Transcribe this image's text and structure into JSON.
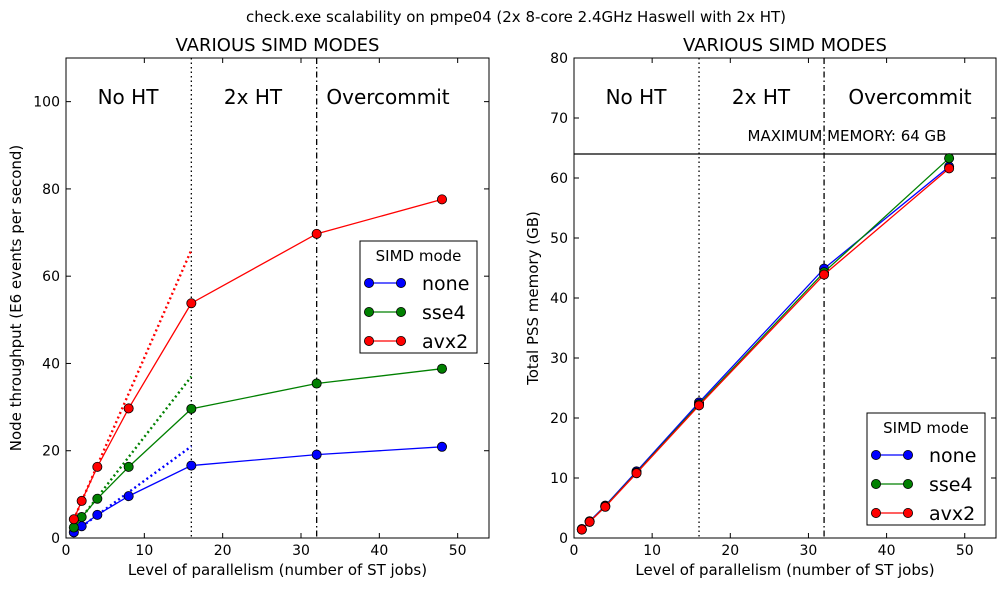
{
  "suptitle": "check.exe scalability on pmpe04 (2x 8-core 2.4GHz Haswell with 2x HT)",
  "colors": {
    "none": "#0000ff",
    "sse4": "#008000",
    "avx2": "#ff0000",
    "axis": "#000000"
  },
  "chart_data": [
    {
      "type": "line",
      "title": "VARIOUS SIMD MODES",
      "xlabel": "Level of parallelism (number of ST jobs)",
      "ylabel": "Node throughput (E6 events per second)",
      "xlim": [
        0,
        54
      ],
      "ylim": [
        0,
        110
      ],
      "xticks": [
        0,
        10,
        20,
        30,
        40,
        50
      ],
      "yticks": [
        0,
        20,
        40,
        60,
        80,
        100
      ],
      "grid": false,
      "regions": [
        "No HT",
        "2x HT",
        "Overcommit"
      ],
      "vlines": [
        {
          "x": 16,
          "style": "dotted"
        },
        {
          "x": 32,
          "style": "dashdot"
        }
      ],
      "legend": {
        "title": "SIMD mode",
        "position": "center-right"
      },
      "series": [
        {
          "name": "none",
          "color_key": "none",
          "x": [
            1,
            2,
            4,
            8,
            16,
            32,
            48
          ],
          "y": [
            1.3,
            2.7,
            5.3,
            9.6,
            16.6,
            19.1,
            20.9
          ],
          "ideal": {
            "x": [
              1,
              16
            ],
            "y": [
              1.3,
              21
            ]
          }
        },
        {
          "name": "sse4",
          "color_key": "sse4",
          "x": [
            1,
            2,
            4,
            8,
            16,
            32,
            48
          ],
          "y": [
            2.4,
            4.8,
            9.0,
            16.3,
            29.6,
            35.4,
            38.8
          ],
          "ideal": {
            "x": [
              1,
              16
            ],
            "y": [
              2.4,
              37
            ]
          }
        },
        {
          "name": "avx2",
          "color_key": "avx2",
          "x": [
            1,
            2,
            4,
            8,
            16,
            32,
            48
          ],
          "y": [
            4.3,
            8.5,
            16.3,
            29.7,
            53.8,
            69.7,
            77.6
          ],
          "ideal": {
            "x": [
              1,
              16
            ],
            "y": [
              4.3,
              66
            ]
          }
        }
      ]
    },
    {
      "type": "line",
      "title": "VARIOUS SIMD MODES",
      "xlabel": "Level of parallelism (number of ST jobs)",
      "ylabel": "Total PSS memory (GB)",
      "xlim": [
        0,
        54
      ],
      "ylim": [
        0,
        80
      ],
      "xticks": [
        0,
        10,
        20,
        30,
        40,
        50
      ],
      "yticks": [
        0,
        10,
        20,
        30,
        40,
        50,
        60,
        70,
        80
      ],
      "grid": false,
      "regions": [
        "No HT",
        "2x HT",
        "Overcommit"
      ],
      "vlines": [
        {
          "x": 16,
          "style": "dotted"
        },
        {
          "x": 32,
          "style": "dashdot"
        }
      ],
      "hline": {
        "y": 64,
        "label": "MAXIMUM MEMORY: 64 GB"
      },
      "legend": {
        "title": "SIMD mode",
        "position": "bottom-right"
      },
      "series": [
        {
          "name": "none",
          "color_key": "none",
          "x": [
            1,
            2,
            4,
            8,
            16,
            32,
            48
          ],
          "y": [
            1.5,
            2.8,
            5.4,
            11.1,
            22.6,
            44.9,
            61.9
          ]
        },
        {
          "name": "sse4",
          "color_key": "sse4",
          "x": [
            1,
            2,
            4,
            8,
            16,
            32,
            48
          ],
          "y": [
            1.4,
            2.7,
            5.3,
            10.9,
            22.3,
            44.3,
            63.3
          ]
        },
        {
          "name": "avx2",
          "color_key": "avx2",
          "x": [
            1,
            2,
            4,
            8,
            16,
            32,
            48
          ],
          "y": [
            1.4,
            2.7,
            5.2,
            10.8,
            22.1,
            43.9,
            61.6
          ]
        }
      ]
    }
  ]
}
